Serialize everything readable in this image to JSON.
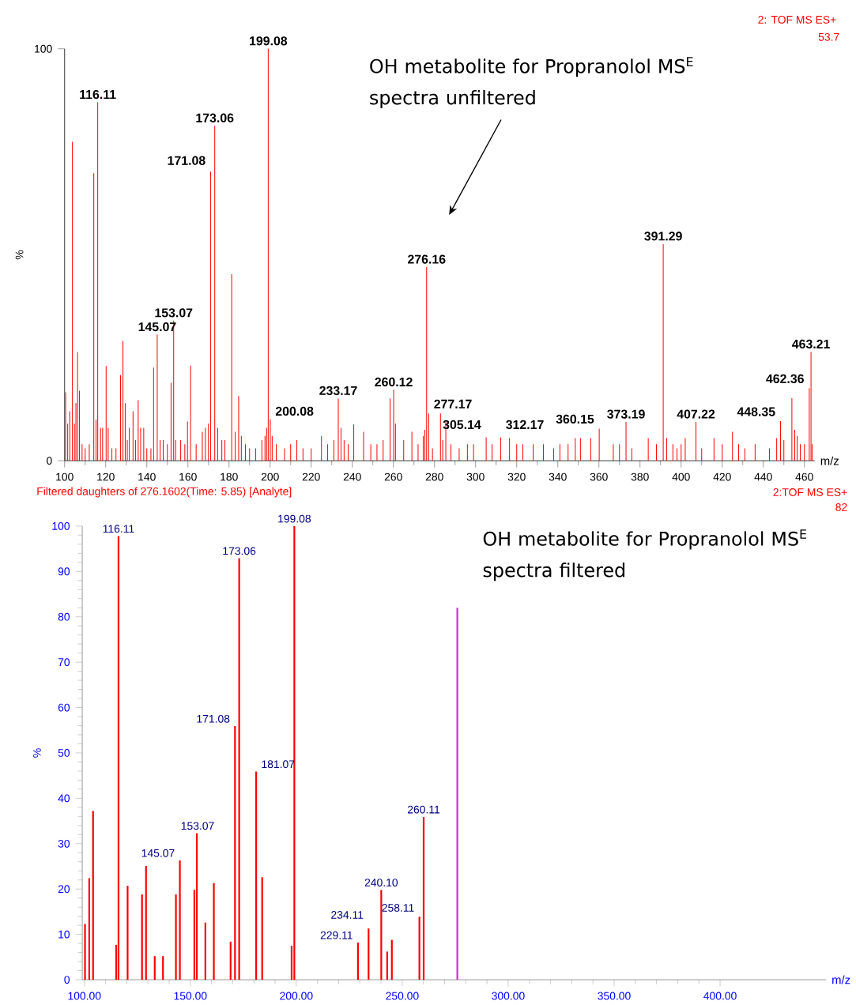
{
  "chart_data": [
    {
      "type": "bar",
      "title": "OH metabolite for Propranolol MS$^{E}$ spectra unfiltered",
      "xlabel": "m/z",
      "ylabel": "%",
      "xlim": [
        100,
        465
      ],
      "ylim": [
        0,
        100
      ],
      "xticks": [
        100,
        120,
        140,
        160,
        180,
        200,
        220,
        240,
        260,
        280,
        300,
        320,
        340,
        360,
        380,
        400,
        420,
        440,
        460
      ],
      "yticks": [
        0,
        100
      ],
      "series": [
        {
          "color": "#ff0000",
          "x": [
            100.5,
            101.5,
            102.5,
            103.8,
            104.8,
            105.5,
            106.3,
            107.2,
            108.5,
            110,
            112,
            114.2,
            115.3,
            116.11,
            117.5,
            118.5,
            120.2,
            121.2,
            123,
            125,
            127.2,
            128.4,
            129.5,
            130.5,
            131.5,
            133.3,
            134.5,
            135.8,
            137,
            138.5,
            140,
            142,
            143.3,
            145.07,
            146.5,
            148,
            150,
            151.8,
            153.07,
            154,
            156.5,
            158.5,
            159.8,
            161.3,
            164,
            167,
            168.5,
            170,
            171.08,
            173.06,
            174.5,
            176.5,
            178,
            181.3,
            183,
            184.7,
            186,
            188,
            190,
            193,
            196,
            197.5,
            198.3,
            199.08,
            200.08,
            201,
            203,
            207,
            210,
            213,
            216,
            220,
            225,
            228,
            231,
            233.17,
            234.5,
            236,
            238,
            240.7,
            245.5,
            249,
            252,
            255,
            258.4,
            260.12,
            261,
            265,
            269,
            272,
            274.5,
            275.3,
            276.16,
            277.17,
            279,
            282.9,
            284,
            285.5,
            288,
            292,
            296,
            299,
            305.14,
            308,
            312.17,
            316.5,
            320,
            323,
            328,
            333,
            338,
            341,
            345,
            348.5,
            351,
            356,
            360.15,
            367,
            370,
            373.19,
            376,
            384,
            388,
            391.29,
            393,
            396,
            398,
            400,
            402,
            407.22,
            410,
            416,
            420,
            425,
            428,
            431,
            436,
            443,
            446.5,
            448.35,
            450,
            453.9,
            455.3,
            456.5,
            458,
            460,
            462.36,
            463.21,
            463.8
          ],
          "values": [
            16.6,
            9,
            12,
            77.4,
            9,
            14,
            26.4,
            17,
            4,
            3,
            4,
            69.8,
            10,
            87,
            8,
            8,
            23,
            8,
            3,
            3,
            20.8,
            29.1,
            14,
            5,
            8,
            12,
            5,
            14.7,
            8,
            8,
            3,
            3,
            22.6,
            30.6,
            5,
            5,
            4,
            18.9,
            34,
            5,
            5,
            4,
            9.5,
            23.1,
            4,
            7,
            8,
            9,
            70.2,
            81.3,
            8,
            5,
            5,
            45.3,
            7,
            15.7,
            6,
            4,
            3,
            3,
            5,
            6,
            8,
            100,
            10.1,
            6,
            4,
            3,
            4,
            5,
            3,
            3,
            6,
            4,
            5,
            15.1,
            8,
            5,
            4,
            8.8,
            7,
            4,
            4,
            5,
            15.1,
            17.2,
            9,
            5,
            7,
            4,
            6,
            7.5,
            47,
            11.5,
            3,
            11.5,
            5,
            9.5,
            4,
            3,
            4,
            4,
            5.7,
            4,
            5.7,
            5.5,
            4,
            4,
            4,
            4,
            3,
            4,
            4,
            5.5,
            5.5,
            5.5,
            7.8,
            4,
            4,
            9.4,
            3,
            5.5,
            4,
            52.6,
            5.5,
            4,
            3,
            4,
            5.5,
            9.4,
            3,
            5.5,
            4,
            7,
            4,
            3,
            4,
            3,
            5.5,
            9.6,
            5,
            15.2,
            7.5,
            6,
            4,
            4,
            17.6,
            26.4,
            4
          ]
        }
      ],
      "annotations": [
        "2: TOF MS ES+",
        "53.7",
        {
          "text": "116.11",
          "x": 116.11,
          "y": 87
        },
        {
          "text": "145.07",
          "x": 145.07,
          "y": 30.6
        },
        {
          "text": "153.07",
          "x": 153.07,
          "y": 34
        },
        {
          "text": "171.08",
          "x": 171.08,
          "y": 70.2
        },
        {
          "text": "173.06",
          "x": 173.06,
          "y": 81.3
        },
        {
          "text": "199.08",
          "x": 199.08,
          "y": 100
        },
        {
          "text": "200.08",
          "x": 200.08,
          "y": 10.1
        },
        {
          "text": "233.17",
          "x": 233.17,
          "y": 15.1
        },
        {
          "text": "260.12",
          "x": 260.12,
          "y": 17.2
        },
        {
          "text": "276.16",
          "x": 276.16,
          "y": 47
        },
        {
          "text": "277.17",
          "x": 277.17,
          "y": 11.5
        },
        {
          "text": "305.14",
          "x": 305.14,
          "y": 5.7
        },
        {
          "text": "312.17",
          "x": 312.17,
          "y": 5.7
        },
        {
          "text": "360.15",
          "x": 360.15,
          "y": 7.8
        },
        {
          "text": "373.19",
          "x": 373.19,
          "y": 9.4
        },
        {
          "text": "391.29",
          "x": 391.29,
          "y": 52.6
        },
        {
          "text": "407.22",
          "x": 407.22,
          "y": 9.4
        },
        {
          "text": "448.35",
          "x": 448.35,
          "y": 9.6
        },
        {
          "text": "462.36",
          "x": 462.36,
          "y": 17.6
        },
        {
          "text": "463.21",
          "x": 463.21,
          "y": 26.4
        }
      ]
    },
    {
      "type": "bar",
      "title": "OH metabolite for Propranolol MS$^{E}$ spectra filtered",
      "xlabel": "m/z",
      "ylabel": "%",
      "xlim": [
        99,
        450
      ],
      "ylim": [
        0,
        100
      ],
      "xticks": [
        {
          "value": 100,
          "label": "100.00"
        },
        {
          "value": 150,
          "label": "150.00"
        },
        {
          "value": 200,
          "label": "200.00"
        },
        {
          "value": 250,
          "label": "250.00"
        },
        {
          "value": 300,
          "label": "300.00"
        },
        {
          "value": 350,
          "label": "350.00"
        },
        {
          "value": 400,
          "label": "400.00"
        }
      ],
      "yticks": [
        0,
        10,
        20,
        30,
        40,
        50,
        60,
        70,
        80,
        90,
        100
      ],
      "series": [
        {
          "color": "#ff0000",
          "x": [
            100.3,
            102.3,
            104.1,
            115,
            116.11,
            120.4,
            127.2,
            129.1,
            133.2,
            137.1,
            143.2,
            145.07,
            151.9,
            153.07,
            157.1,
            161.1,
            169,
            171.08,
            173.06,
            181.07,
            183.9,
            197.8,
            199.08,
            229.11,
            234.11,
            240.1,
            242.9,
            245.1,
            258.11,
            260.11
          ],
          "values": [
            12.3,
            22.4,
            37.2,
            7.7,
            97.8,
            20.7,
            18.8,
            25.1,
            5.2,
            5.2,
            18.8,
            26.3,
            19.8,
            32.3,
            12.6,
            21.3,
            8.4,
            55.9,
            92.9,
            45.9,
            22.6,
            7.5,
            100,
            8.2,
            11.3,
            19.8,
            6.2,
            8.8,
            13.9,
            35.9
          ]
        },
        {
          "color": "#e020e0",
          "x": [
            276
          ],
          "values": [
            82
          ]
        }
      ],
      "annotations": [
        "Filtered daughters of 276.1602(Time: 5.85) [Analyte]",
        "2:TOF MS ES+",
        "82",
        {
          "text": "116.11",
          "x": 116.11,
          "y": 97.8
        },
        {
          "text": "145.07",
          "x": 145.07,
          "y": 26.3
        },
        {
          "text": "153.07",
          "x": 153.07,
          "y": 32.3
        },
        {
          "text": "171.08",
          "x": 171.08,
          "y": 55.9
        },
        {
          "text": "173.06",
          "x": 173.06,
          "y": 92.9
        },
        {
          "text": "181.07",
          "x": 181.07,
          "y": 45.9
        },
        {
          "text": "199.08",
          "x": 199.08,
          "y": 100
        },
        {
          "text": "229.11",
          "x": 229.11,
          "y": 8.2
        },
        {
          "text": "234.11",
          "x": 234.11,
          "y": 11.3
        },
        {
          "text": "240.10",
          "x": 240.1,
          "y": 19.8
        },
        {
          "text": "258.11",
          "x": 258.11,
          "y": 13.9
        },
        {
          "text": "260.11",
          "x": 260.11,
          "y": 35.9
        }
      ]
    }
  ]
}
